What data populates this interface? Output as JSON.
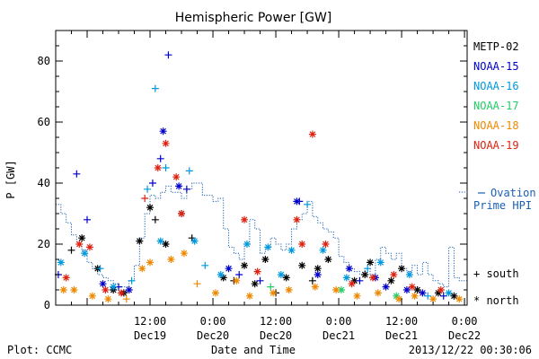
{
  "chart_data": {
    "type": "scatter",
    "title": "Hemispheric Power [GW]",
    "ylabel": "P [GW]",
    "xlabel": "Date and Time",
    "ylim": [
      0,
      90
    ],
    "yticks": [
      0,
      20,
      40,
      60,
      80
    ],
    "xlim": [
      "2013-12-18 18:00",
      "2013-12-22 00:30"
    ],
    "xticks": [
      {
        "time": "2013-12-19 12:00",
        "top": "12:00",
        "bottom": "Dec19"
      },
      {
        "time": "2013-12-20 00:00",
        "top": "0:00",
        "bottom": "Dec20"
      },
      {
        "time": "2013-12-20 12:00",
        "top": "12:00",
        "bottom": "Dec20"
      },
      {
        "time": "2013-12-21 00:00",
        "top": "0:00",
        "bottom": "Dec21"
      },
      {
        "time": "2013-12-21 12:00",
        "top": "12:00",
        "bottom": "Dec21"
      },
      {
        "time": "2013-12-22 00:00",
        "top": "0:00",
        "bottom": "Dec22"
      }
    ],
    "legend_position": "right",
    "series": [
      {
        "name": "METP-02",
        "color": "#000000",
        "points": [
          [
            "2013-12-18 21:00",
            18,
            "+"
          ],
          [
            "2013-12-18 23:00",
            22,
            "*"
          ],
          [
            "2013-12-19 02:00",
            12,
            "*"
          ],
          [
            "2013-12-19 05:00",
            5,
            "*"
          ],
          [
            "2013-12-19 07:00",
            4,
            "*"
          ],
          [
            "2013-12-19 10:00",
            21,
            "*"
          ],
          [
            "2013-12-19 12:00",
            32,
            "*"
          ],
          [
            "2013-12-19 13:00",
            28,
            "+"
          ],
          [
            "2013-12-19 15:00",
            20,
            "*"
          ],
          [
            "2013-12-19 18:00",
            30,
            "*"
          ],
          [
            "2013-12-19 20:00",
            22,
            "+"
          ],
          [
            "2013-12-20 02:00",
            9,
            "*"
          ],
          [
            "2013-12-20 04:00",
            8,
            "+"
          ],
          [
            "2013-12-20 06:00",
            13,
            "*"
          ],
          [
            "2013-12-20 08:00",
            7,
            "*"
          ],
          [
            "2013-12-20 10:00",
            15,
            "*"
          ],
          [
            "2013-12-20 12:00",
            4,
            "+"
          ],
          [
            "2013-12-20 14:00",
            9,
            "*"
          ],
          [
            "2013-12-20 17:00",
            13,
            "*"
          ],
          [
            "2013-12-20 19:00",
            8,
            "+"
          ],
          [
            "2013-12-20 20:00",
            12,
            "*"
          ],
          [
            "2013-12-20 22:00",
            15,
            "*"
          ],
          [
            "2013-12-21 03:00",
            8,
            "*"
          ],
          [
            "2013-12-21 05:00",
            10,
            "*"
          ],
          [
            "2013-12-21 06:00",
            14,
            "*"
          ],
          [
            "2013-12-21 10:00",
            8,
            "*"
          ],
          [
            "2013-12-21 12:00",
            12,
            "*"
          ],
          [
            "2013-12-21 15:00",
            5,
            "*"
          ],
          [
            "2013-12-21 19:00",
            4,
            "*"
          ],
          [
            "2013-12-21 22:00",
            3,
            "*"
          ]
        ]
      },
      {
        "name": "NOAA-15",
        "color": "#0000cc",
        "points": [
          [
            "2013-12-18 18:30",
            10,
            "+"
          ],
          [
            "2013-12-18 22:00",
            43,
            "+"
          ],
          [
            "2013-12-19 00:00",
            28,
            "+"
          ],
          [
            "2013-12-19 03:00",
            7,
            "*"
          ],
          [
            "2013-12-19 06:00",
            6,
            "+"
          ],
          [
            "2013-12-19 08:00",
            5,
            "*"
          ],
          [
            "2013-12-19 12:30",
            40,
            "+"
          ],
          [
            "2013-12-19 14:00",
            48,
            "+"
          ],
          [
            "2013-12-19 14:30",
            57,
            "*"
          ],
          [
            "2013-12-19 15:30",
            82,
            "+"
          ],
          [
            "2013-12-19 17:30",
            39,
            "*"
          ],
          [
            "2013-12-19 19:00",
            38,
            "+"
          ],
          [
            "2013-12-20 03:00",
            12,
            "*"
          ],
          [
            "2013-12-20 05:00",
            10,
            "+"
          ],
          [
            "2013-12-20 09:00",
            8,
            "+"
          ],
          [
            "2013-12-20 16:00",
            34,
            "*"
          ],
          [
            "2013-12-20 16:30",
            34,
            "+"
          ],
          [
            "2013-12-20 20:00",
            10,
            "*"
          ],
          [
            "2013-12-21 02:00",
            12,
            "*"
          ],
          [
            "2013-12-21 04:00",
            8,
            "+"
          ],
          [
            "2013-12-21 07:00",
            9,
            "*"
          ],
          [
            "2013-12-21 09:00",
            6,
            "*"
          ],
          [
            "2013-12-21 13:00",
            5,
            "*"
          ],
          [
            "2013-12-21 16:00",
            4,
            "*"
          ],
          [
            "2013-12-21 20:00",
            3,
            "+"
          ]
        ]
      },
      {
        "name": "NOAA-16",
        "color": "#0099dd",
        "points": [
          [
            "2013-12-18 19:00",
            14,
            "*"
          ],
          [
            "2013-12-18 23:30",
            17,
            "*"
          ],
          [
            "2013-12-19 02:30",
            12,
            "+"
          ],
          [
            "2013-12-19 05:00",
            6,
            "*"
          ],
          [
            "2013-12-19 08:30",
            8,
            "+"
          ],
          [
            "2013-12-19 11:30",
            38,
            "+"
          ],
          [
            "2013-12-19 13:00",
            71,
            "+"
          ],
          [
            "2013-12-19 14:00",
            21,
            "*"
          ],
          [
            "2013-12-19 15:00",
            45,
            "+"
          ],
          [
            "2013-12-19 19:30",
            44,
            "+"
          ],
          [
            "2013-12-19 20:30",
            21,
            "*"
          ],
          [
            "2013-12-19 22:30",
            13,
            "+"
          ],
          [
            "2013-12-20 01:30",
            10,
            "*"
          ],
          [
            "2013-12-20 06:30",
            20,
            "*"
          ],
          [
            "2013-12-20 10:30",
            19,
            "*"
          ],
          [
            "2013-12-20 13:00",
            10,
            "*"
          ],
          [
            "2013-12-20 15:00",
            18,
            "*"
          ],
          [
            "2013-12-20 18:00",
            33,
            "+"
          ],
          [
            "2013-12-20 21:00",
            18,
            "*"
          ],
          [
            "2013-12-21 01:30",
            9,
            "*"
          ],
          [
            "2013-12-21 05:30",
            12,
            "+"
          ],
          [
            "2013-12-21 08:00",
            14,
            "*"
          ],
          [
            "2013-12-21 13:30",
            10,
            "*"
          ],
          [
            "2013-12-21 17:00",
            3,
            "+"
          ],
          [
            "2013-12-21 21:00",
            4,
            "*"
          ]
        ]
      },
      {
        "name": "NOAA-17",
        "color": "#22cc66",
        "points": [
          [
            "2013-12-20 11:00",
            6,
            "+"
          ],
          [
            "2013-12-21 00:30",
            5,
            "*"
          ],
          [
            "2013-12-21 11:00",
            3,
            "*"
          ]
        ]
      },
      {
        "name": "NOAA-18",
        "color": "#ee8800",
        "points": [
          [
            "2013-12-18 19:30",
            5,
            "*"
          ],
          [
            "2013-12-18 21:30",
            5,
            "*"
          ],
          [
            "2013-12-19 01:00",
            3,
            "*"
          ],
          [
            "2013-12-19 04:00",
            2,
            "*"
          ],
          [
            "2013-12-19 07:30",
            2,
            "+"
          ],
          [
            "2013-12-19 10:30",
            12,
            "*"
          ],
          [
            "2013-12-19 12:00",
            14,
            "*"
          ],
          [
            "2013-12-19 16:00",
            15,
            "*"
          ],
          [
            "2013-12-19 18:30",
            17,
            "*"
          ],
          [
            "2013-12-19 21:00",
            7,
            "+"
          ],
          [
            "2013-12-20 00:30",
            4,
            "*"
          ],
          [
            "2013-12-20 04:30",
            8,
            "*"
          ],
          [
            "2013-12-20 07:00",
            3,
            "*"
          ],
          [
            "2013-12-20 11:30",
            4,
            "*"
          ],
          [
            "2013-12-20 14:30",
            5,
            "*"
          ],
          [
            "2013-12-20 19:30",
            6,
            "*"
          ],
          [
            "2013-12-20 23:30",
            5,
            "*"
          ],
          [
            "2013-12-21 03:30",
            3,
            "*"
          ],
          [
            "2013-12-21 07:30",
            4,
            "*"
          ],
          [
            "2013-12-21 11:30",
            2,
            "*"
          ],
          [
            "2013-12-21 14:30",
            3,
            "*"
          ],
          [
            "2013-12-21 18:00",
            2,
            "*"
          ],
          [
            "2013-12-21 23:00",
            2,
            "*"
          ]
        ]
      },
      {
        "name": "NOAA-19",
        "color": "#dd2211",
        "points": [
          [
            "2013-12-18 20:00",
            9,
            "*"
          ],
          [
            "2013-12-18 22:30",
            20,
            "*"
          ],
          [
            "2013-12-19 00:30",
            19,
            "*"
          ],
          [
            "2013-12-19 03:30",
            5,
            "*"
          ],
          [
            "2013-12-19 06:30",
            4,
            "*"
          ],
          [
            "2013-12-19 11:00",
            35,
            "+"
          ],
          [
            "2013-12-19 13:30",
            45,
            "*"
          ],
          [
            "2013-12-19 15:00",
            53,
            "*"
          ],
          [
            "2013-12-19 17:00",
            42,
            "*"
          ],
          [
            "2013-12-19 18:00",
            30,
            "*"
          ],
          [
            "2013-12-20 06:00",
            28,
            "*"
          ],
          [
            "2013-12-20 08:30",
            11,
            "*"
          ],
          [
            "2013-12-20 16:00",
            28,
            "*"
          ],
          [
            "2013-12-20 17:00",
            20,
            "*"
          ],
          [
            "2013-12-20 19:00",
            56,
            "*"
          ],
          [
            "2013-12-20 21:30",
            20,
            "*"
          ],
          [
            "2013-12-21 02:30",
            7,
            "*"
          ],
          [
            "2013-12-21 06:30",
            9,
            "*"
          ],
          [
            "2013-12-21 10:30",
            10,
            "*"
          ],
          [
            "2013-12-21 14:00",
            6,
            "*"
          ],
          [
            "2013-12-21 19:30",
            5,
            "*"
          ]
        ]
      }
    ],
    "ovation": {
      "label_line1": "Ovation",
      "label_line2": "Prime HPI",
      "color": "#1a5fb4",
      "steps": [
        [
          "2013-12-18 18:00",
          33
        ],
        [
          "2013-12-18 19:00",
          30
        ],
        [
          "2013-12-18 20:00",
          27
        ],
        [
          "2013-12-18 21:00",
          23
        ],
        [
          "2013-12-18 22:00",
          20
        ],
        [
          "2013-12-18 23:00",
          18
        ],
        [
          "2013-12-19 00:00",
          14
        ],
        [
          "2013-12-19 01:00",
          12
        ],
        [
          "2013-12-19 02:00",
          10
        ],
        [
          "2013-12-19 03:00",
          9
        ],
        [
          "2013-12-19 04:00",
          8
        ],
        [
          "2013-12-19 05:00",
          7
        ],
        [
          "2013-12-19 06:00",
          6
        ],
        [
          "2013-12-19 07:00",
          6
        ],
        [
          "2013-12-19 08:00",
          8
        ],
        [
          "2013-12-19 09:00",
          13
        ],
        [
          "2013-12-19 10:00",
          22
        ],
        [
          "2013-12-19 11:00",
          30
        ],
        [
          "2013-12-19 12:00",
          36
        ],
        [
          "2013-12-19 13:00",
          35
        ],
        [
          "2013-12-19 14:00",
          37
        ],
        [
          "2013-12-19 15:00",
          39
        ],
        [
          "2013-12-19 16:00",
          37
        ],
        [
          "2013-12-19 18:00",
          35
        ],
        [
          "2013-12-19 19:00",
          38
        ],
        [
          "2013-12-19 20:00",
          40
        ],
        [
          "2013-12-19 22:00",
          36
        ],
        [
          "2013-12-20 00:00",
          34
        ],
        [
          "2013-12-20 01:00",
          35
        ],
        [
          "2013-12-20 02:00",
          25
        ],
        [
          "2013-12-20 03:00",
          19
        ],
        [
          "2013-12-20 04:00",
          17
        ],
        [
          "2013-12-20 05:00",
          15
        ],
        [
          "2013-12-20 06:00",
          20
        ],
        [
          "2013-12-20 07:00",
          28
        ],
        [
          "2013-12-20 08:00",
          25
        ],
        [
          "2013-12-20 09:00",
          17
        ],
        [
          "2013-12-20 10:00",
          19
        ],
        [
          "2013-12-20 11:00",
          22
        ],
        [
          "2013-12-20 12:00",
          20
        ],
        [
          "2013-12-20 13:00",
          18
        ],
        [
          "2013-12-20 14:00",
          20
        ],
        [
          "2013-12-20 15:00",
          25
        ],
        [
          "2013-12-20 16:00",
          28
        ],
        [
          "2013-12-20 17:00",
          30
        ],
        [
          "2013-12-20 18:00",
          34
        ],
        [
          "2013-12-20 19:00",
          29
        ],
        [
          "2013-12-20 20:00",
          27
        ],
        [
          "2013-12-20 21:00",
          25
        ],
        [
          "2013-12-20 22:00",
          24
        ],
        [
          "2013-12-20 23:00",
          22
        ],
        [
          "2013-12-21 00:00",
          16
        ],
        [
          "2013-12-21 01:00",
          14
        ],
        [
          "2013-12-21 02:00",
          12
        ],
        [
          "2013-12-21 03:00",
          11
        ],
        [
          "2013-12-21 04:00",
          10
        ],
        [
          "2013-12-21 05:00",
          12
        ],
        [
          "2013-12-21 06:00",
          10
        ],
        [
          "2013-12-21 07:00",
          15
        ],
        [
          "2013-12-21 08:00",
          19
        ],
        [
          "2013-12-21 09:00",
          17
        ],
        [
          "2013-12-21 10:00",
          15
        ],
        [
          "2013-12-21 11:00",
          17
        ],
        [
          "2013-12-21 12:00",
          12
        ],
        [
          "2013-12-21 13:00",
          11
        ],
        [
          "2013-12-21 14:00",
          13
        ],
        [
          "2013-12-21 15:00",
          10
        ],
        [
          "2013-12-21 16:00",
          14
        ],
        [
          "2013-12-21 17:00",
          10
        ],
        [
          "2013-12-21 18:00",
          8
        ],
        [
          "2013-12-21 19:00",
          7
        ],
        [
          "2013-12-21 20:00",
          6
        ],
        [
          "2013-12-21 21:00",
          19
        ],
        [
          "2013-12-21 22:00",
          9
        ],
        [
          "2013-12-21 23:00",
          8
        ],
        [
          "2013-12-22 00:00",
          8
        ],
        [
          "2013-12-22 00:30",
          8
        ]
      ]
    },
    "symbol_legend": [
      {
        "symbol": "+",
        "label": "south"
      },
      {
        "symbol": "*",
        "label": "north"
      }
    ]
  },
  "footer": {
    "plot_credit": "Plot: CCMC",
    "timestamp": "2013/12/22 00:30:06"
  }
}
